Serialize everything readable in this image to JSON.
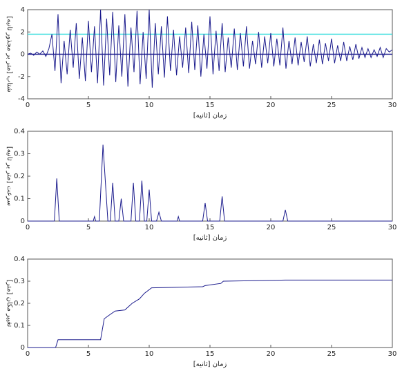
{
  "chart_data": [
    {
      "type": "line",
      "ylabel": "شتاب [متر بر مجذور ثانیه]",
      "xlabel": "زمان [ثانیه]",
      "xlim": [
        0,
        30
      ],
      "xticks": [
        0,
        5,
        10,
        15,
        20,
        25,
        30
      ],
      "ylim": [
        -4,
        4
      ],
      "yticks": [
        -4,
        -2,
        0,
        2,
        4
      ],
      "hlines": [
        {
          "value": 0,
          "color": "#1a1a8c"
        },
        {
          "value": 1.8,
          "color": "#33dede"
        }
      ],
      "series": [
        {
          "color": "#1a1a8c",
          "x": [
            0,
            0.25,
            0.5,
            0.75,
            1,
            1.25,
            1.5,
            1.75,
            2,
            2.25,
            2.5,
            2.75,
            3,
            3.25,
            3.5,
            3.75,
            4,
            4.25,
            4.5,
            4.75,
            5,
            5.25,
            5.5,
            5.75,
            6,
            6.25,
            6.5,
            6.75,
            7,
            7.25,
            7.5,
            7.75,
            8,
            8.25,
            8.5,
            8.75,
            9,
            9.25,
            9.5,
            9.75,
            10,
            10.25,
            10.5,
            10.75,
            11,
            11.25,
            11.5,
            11.75,
            12,
            12.25,
            12.5,
            12.75,
            13,
            13.25,
            13.5,
            13.75,
            14,
            14.25,
            14.5,
            14.75,
            15,
            15.25,
            15.5,
            15.75,
            16,
            16.25,
            16.5,
            16.75,
            17,
            17.25,
            17.5,
            17.75,
            18,
            18.25,
            18.5,
            18.75,
            19,
            19.25,
            19.5,
            19.75,
            20,
            20.25,
            20.5,
            20.75,
            21,
            21.25,
            21.5,
            21.75,
            22,
            22.25,
            22.5,
            22.75,
            23,
            23.25,
            23.5,
            23.75,
            24,
            24.25,
            24.5,
            24.75,
            25,
            25.25,
            25.5,
            25.75,
            26,
            26.25,
            26.5,
            26.75,
            27,
            27.25,
            27.5,
            27.75,
            28,
            28.25,
            28.5,
            28.75,
            29,
            29.25,
            29.5,
            29.75,
            30
          ],
          "values": [
            0,
            0.1,
            -0.1,
            0.2,
            0,
            0.3,
            -0.2,
            0.5,
            1.8,
            -1.5,
            3.6,
            -2.6,
            1.2,
            -1.8,
            2.2,
            -1.2,
            2.8,
            -2.2,
            1.5,
            -2.4,
            3.0,
            -1.6,
            2.5,
            -2.6,
            4.0,
            -2.8,
            3.2,
            -1.9,
            3.8,
            -2.5,
            2.6,
            -2.0,
            3.6,
            -2.9,
            2.4,
            -1.6,
            3.9,
            -2.7,
            2.0,
            -2.2,
            4.0,
            -3.0,
            2.8,
            -1.8,
            2.5,
            -2.1,
            3.4,
            -1.5,
            2.2,
            -1.9,
            1.6,
            -1.2,
            2.4,
            -1.7,
            2.9,
            -1.4,
            2.6,
            -2.0,
            1.8,
            -1.3,
            3.4,
            -1.8,
            2.1,
            -1.5,
            2.8,
            -1.6,
            1.5,
            -1.2,
            2.3,
            -1.4,
            1.9,
            -1.1,
            2.5,
            -1.3,
            1.2,
            -0.9,
            2.0,
            -1.2,
            1.6,
            -0.8,
            1.9,
            -1.1,
            1.4,
            -1.0,
            2.4,
            -1.3,
            1.2,
            -0.9,
            1.5,
            -1.0,
            1.1,
            -0.7,
            1.6,
            -1.1,
            0.9,
            -0.8,
            1.3,
            -0.9,
            1.0,
            -0.6,
            1.4,
            -0.8,
            0.8,
            -0.6,
            1.1,
            -0.6,
            0.7,
            -0.5,
            0.9,
            -0.4,
            0.6,
            -0.3,
            0.5,
            -0.3,
            0.4,
            -0.2,
            0.6,
            -0.3,
            0.5,
            0.2,
            0.4
          ]
        }
      ]
    },
    {
      "type": "line",
      "ylabel": "سرعت [متر بر ثانیه]",
      "xlabel": "زمان [ثانیه]",
      "xlim": [
        0,
        30
      ],
      "xticks": [
        0,
        5,
        10,
        15,
        20,
        25,
        30
      ],
      "ylim": [
        0,
        0.4
      ],
      "yticks": [
        0,
        0.1,
        0.2,
        0.3,
        0.4
      ],
      "series": [
        {
          "color": "#1a1a8c",
          "x": [
            0,
            2.2,
            2.4,
            2.6,
            5.4,
            5.5,
            5.6,
            5.9,
            6.2,
            6.6,
            6.8,
            7.0,
            7.2,
            7.5,
            7.7,
            7.9,
            8.5,
            8.7,
            8.9,
            9.2,
            9.4,
            9.6,
            9.8,
            10.0,
            10.2,
            10.6,
            10.8,
            11.0,
            12.3,
            12.4,
            12.5,
            14.4,
            14.6,
            14.8,
            15.8,
            16.0,
            16.2,
            21.0,
            21.2,
            21.4,
            30
          ],
          "values": [
            0,
            0,
            0.19,
            0,
            0,
            0.02,
            0,
            0,
            0.34,
            0,
            0,
            0.17,
            0,
            0,
            0.1,
            0,
            0,
            0.17,
            0,
            0,
            0.18,
            0,
            0,
            0.14,
            0,
            0,
            0.04,
            0,
            0,
            0.02,
            0,
            0,
            0.08,
            0,
            0,
            0.11,
            0,
            0,
            0.05,
            0,
            0
          ]
        }
      ]
    },
    {
      "type": "line",
      "ylabel": "تغییر مکان [متر]",
      "xlabel": "زمان [ثانیه]",
      "xlim": [
        0,
        30
      ],
      "xticks": [
        0,
        5,
        10,
        15,
        20,
        25,
        30
      ],
      "ylim": [
        0,
        0.4
      ],
      "yticks": [
        0,
        0.1,
        0.2,
        0.3,
        0.4
      ],
      "series": [
        {
          "color": "#1a1a8c",
          "x": [
            0,
            2.3,
            2.5,
            6.0,
            6.3,
            6.8,
            7.2,
            8.0,
            8.6,
            9.2,
            9.6,
            10.2,
            14.4,
            14.6,
            15.9,
            16.1,
            21.2,
            30
          ],
          "values": [
            0,
            0,
            0.035,
            0.035,
            0.13,
            0.15,
            0.165,
            0.17,
            0.2,
            0.22,
            0.245,
            0.27,
            0.275,
            0.28,
            0.29,
            0.3,
            0.305,
            0.305
          ]
        }
      ]
    }
  ]
}
